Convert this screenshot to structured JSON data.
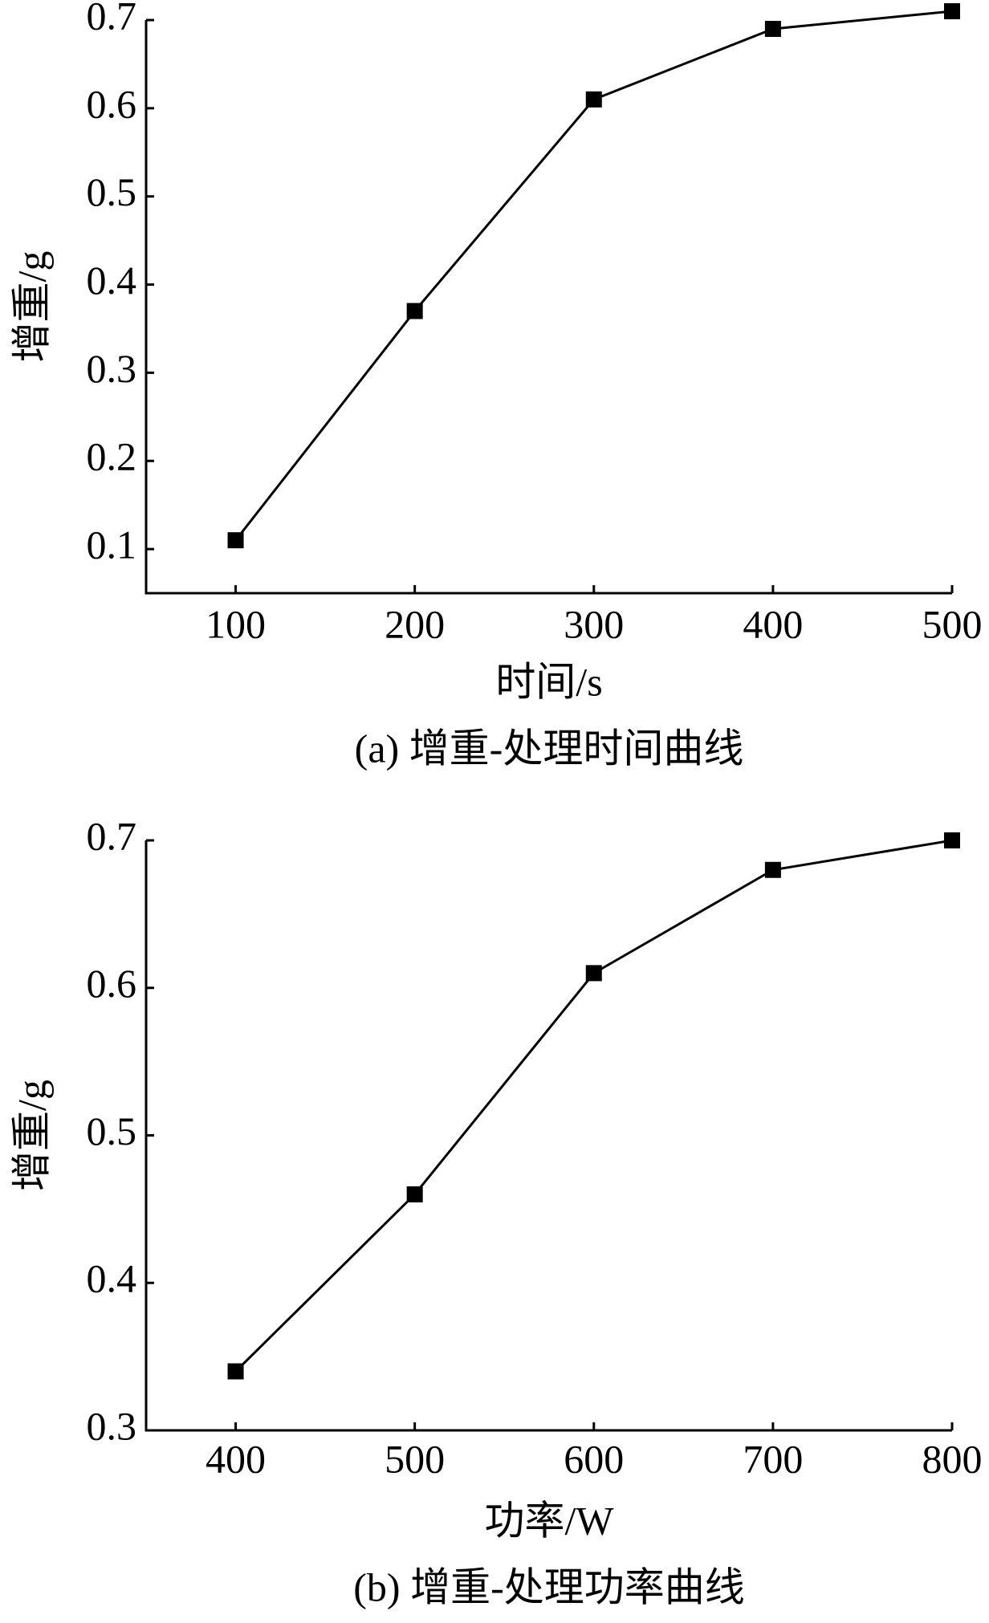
{
  "chart_data": [
    {
      "type": "line",
      "x_label": "时间/s",
      "y_label": "增重/g",
      "caption": "(a) 增重-处理时间曲线",
      "x": [
        100,
        200,
        300,
        400,
        500
      ],
      "values": [
        0.11,
        0.37,
        0.61,
        0.69,
        0.71
      ],
      "color": "#000000",
      "xlim": [
        50,
        500
      ],
      "xticks": [
        100,
        200,
        300,
        400,
        500
      ],
      "ylim": [
        0.05,
        0.7
      ],
      "yticks": [
        0.1,
        0.2,
        0.3,
        0.4,
        0.5,
        0.6,
        0.7
      ]
    },
    {
      "type": "line",
      "x_label": "功率/W",
      "y_label": "增重/g",
      "caption": "(b) 增重-处理功率曲线",
      "x": [
        400,
        500,
        600,
        700,
        800
      ],
      "values": [
        0.34,
        0.46,
        0.61,
        0.68,
        0.7
      ],
      "color": "#000000",
      "xlim": [
        350,
        800
      ],
      "xticks": [
        400,
        500,
        600,
        700,
        800
      ],
      "ylim": [
        0.3,
        0.7
      ],
      "yticks": [
        0.3,
        0.4,
        0.5,
        0.6,
        0.7
      ]
    }
  ]
}
